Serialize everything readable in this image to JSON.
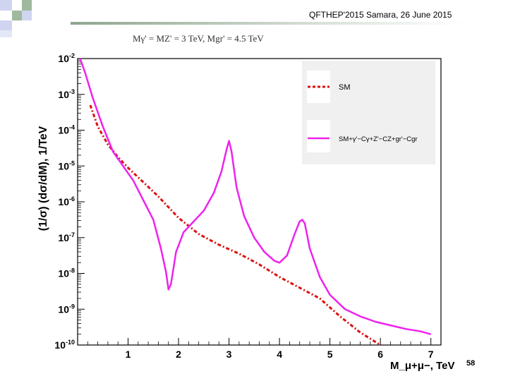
{
  "header": {
    "conference": "QFTHEP'2015 Samara,  26 June 2015"
  },
  "formula": {
    "text": "Mγ' = MZ' = 3 TeV, Mgr' = 4.5 TeV"
  },
  "page_number": "58",
  "colors": {
    "sm": "#dd1111",
    "signal": "#ee22ee",
    "legend_bg": "#f0f0f0",
    "deco_blue": "#cfd5f0",
    "deco_green": "#9fb99f"
  },
  "chart_data": {
    "type": "line",
    "title": "",
    "xlabel": "M_μ+μ−, TeV",
    "ylabel": "(1/σ) (dσ/dM), 1/TeV",
    "xlim": [
      0,
      7.2
    ],
    "ylim": [
      -10,
      -2
    ],
    "y_scale": "log10",
    "x_ticks": [
      1,
      2,
      3,
      4,
      5,
      6,
      7
    ],
    "x_tick_labels": [
      "1",
      "2",
      "3",
      "4",
      "5",
      "6",
      "7"
    ],
    "y_ticks": [
      -10,
      -9,
      -8,
      -7,
      -6,
      -5,
      -4,
      -3,
      -2
    ],
    "y_tick_labels": [
      "10^-10",
      "10^-9",
      "10^-8",
      "10^-7",
      "10^-6",
      "10^-5",
      "10^-4",
      "10^-3",
      "10^-2"
    ],
    "legend_position": "top-right",
    "series": [
      {
        "name": "SM",
        "style": "dash-dot",
        "color": "#dd1111",
        "x": [
          0.25,
          0.4,
          0.6,
          0.8,
          1.0,
          1.3,
          1.6,
          2.0,
          2.4,
          2.8,
          3.2,
          3.6,
          4.0,
          4.4,
          4.8,
          5.2,
          5.6,
          6.0
        ],
        "log10y": [
          -3.3,
          -3.9,
          -4.4,
          -4.75,
          -5.05,
          -5.45,
          -5.85,
          -6.45,
          -6.9,
          -7.2,
          -7.45,
          -7.75,
          -8.1,
          -8.4,
          -8.7,
          -9.2,
          -9.65,
          -10.0
        ]
      },
      {
        "name": "SM+γ'−Cγ+Z'−CZ+gr'−Cgr",
        "style": "solid",
        "color": "#ee22ee",
        "x": [
          0.05,
          0.15,
          0.3,
          0.5,
          0.7,
          0.9,
          1.1,
          1.3,
          1.5,
          1.65,
          1.75,
          1.8,
          1.85,
          1.95,
          2.1,
          2.3,
          2.5,
          2.7,
          2.85,
          2.95,
          3.0,
          3.05,
          3.15,
          3.3,
          3.5,
          3.7,
          3.9,
          4.0,
          4.15,
          4.3,
          4.4,
          4.45,
          4.5,
          4.6,
          4.8,
          5.0,
          5.3,
          5.6,
          5.9,
          6.2,
          6.5,
          6.8,
          7.0
        ],
        "log10y": [
          -2.0,
          -2.4,
          -3.1,
          -3.9,
          -4.6,
          -5.0,
          -5.4,
          -5.95,
          -6.5,
          -7.3,
          -7.95,
          -8.45,
          -8.3,
          -7.4,
          -6.85,
          -6.55,
          -6.25,
          -5.75,
          -5.15,
          -4.55,
          -4.3,
          -4.6,
          -5.6,
          -6.4,
          -7.0,
          -7.4,
          -7.65,
          -7.7,
          -7.5,
          -6.9,
          -6.55,
          -6.5,
          -6.6,
          -7.3,
          -8.1,
          -8.6,
          -9.0,
          -9.2,
          -9.35,
          -9.45,
          -9.55,
          -9.62,
          -9.7
        ]
      }
    ]
  }
}
